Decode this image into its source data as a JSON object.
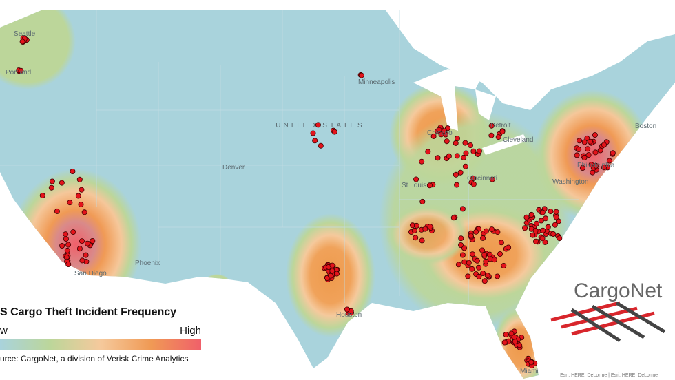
{
  "map_labels": {
    "country": "UNITED STATES",
    "cities": [
      "Seattle",
      "Portland",
      "Minneapolis",
      "Chicago",
      "Detroit",
      "Cleveland",
      "Boston",
      "Philadelphia",
      "Washington",
      "Denver",
      "St Louis",
      "Cincinnati",
      "Phoenix",
      "San Diego",
      "Houston",
      "Miami"
    ]
  },
  "legend": {
    "title": "S Cargo Theft  Incident Frequency",
    "low": "w",
    "high": "High",
    "source": "urce: CargoNet, a division of Verisk Crime Analytics"
  },
  "logo": "CargoNet",
  "attribution": "Esri, HERE, DeLorme | Esri, HERE, DeLorme"
}
